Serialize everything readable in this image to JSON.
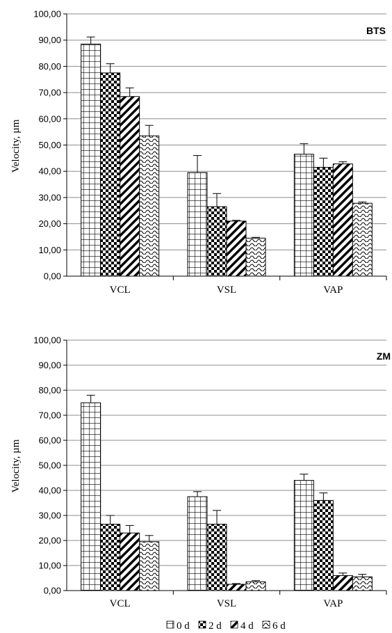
{
  "chart_data": [
    {
      "type": "bar",
      "title": "BTS",
      "ylabel": "Velocity, µm",
      "xlabel": "",
      "ylim": [
        0,
        100
      ],
      "y_ticks": [
        "0,00",
        "10,00",
        "20,00",
        "30,00",
        "40,00",
        "50,00",
        "60,00",
        "70,00",
        "80,00",
        "90,00",
        "100,00"
      ],
      "categories": [
        "VCL",
        "VSL",
        "VAP"
      ],
      "grid": true,
      "series": [
        {
          "name": "0 d",
          "values": [
            88.5,
            39.5,
            46.5
          ],
          "errors": [
            2.7,
            6.5,
            4.0
          ]
        },
        {
          "name": "2 d",
          "values": [
            77.5,
            26.5,
            41.5
          ],
          "errors": [
            3.5,
            5.0,
            3.5
          ]
        },
        {
          "name": "4 d",
          "values": [
            68.5,
            21.0,
            42.8
          ],
          "errors": [
            3.3,
            0.3,
            0.8
          ]
        },
        {
          "name": "6 d",
          "values": [
            53.5,
            14.5,
            27.8
          ],
          "errors": [
            4.0,
            0.3,
            0.5
          ]
        }
      ]
    },
    {
      "type": "bar",
      "title": "ZM",
      "ylabel": "Velocity, µm",
      "xlabel": "",
      "ylim": [
        0,
        100
      ],
      "y_ticks": [
        "0,00",
        "10,00",
        "20,00",
        "30,00",
        "40,00",
        "50,00",
        "60,00",
        "70,00",
        "80,00",
        "90,00",
        "100,00"
      ],
      "categories": [
        "VCL",
        "VSL",
        "VAP"
      ],
      "grid": true,
      "series": [
        {
          "name": "0 d",
          "values": [
            75.0,
            37.5,
            44.0
          ],
          "errors": [
            3.0,
            2.0,
            2.5
          ]
        },
        {
          "name": "2 d",
          "values": [
            26.5,
            26.5,
            36.0
          ],
          "errors": [
            3.5,
            5.5,
            3.0
          ]
        },
        {
          "name": "4 d",
          "values": [
            23.0,
            2.5,
            6.0
          ],
          "errors": [
            3.0,
            0.3,
            1.0
          ]
        },
        {
          "name": "6 d",
          "values": [
            19.5,
            3.5,
            5.5
          ],
          "errors": [
            2.5,
            0.5,
            1.0
          ]
        }
      ]
    }
  ],
  "legend": {
    "items": [
      "0 d",
      "2 d",
      "4 d",
      "6 d"
    ]
  },
  "colors": {
    "bar_fill": "#ffffff",
    "bar_stroke": "#000000",
    "grid": "#8c8c8c",
    "axis": "#000000"
  }
}
